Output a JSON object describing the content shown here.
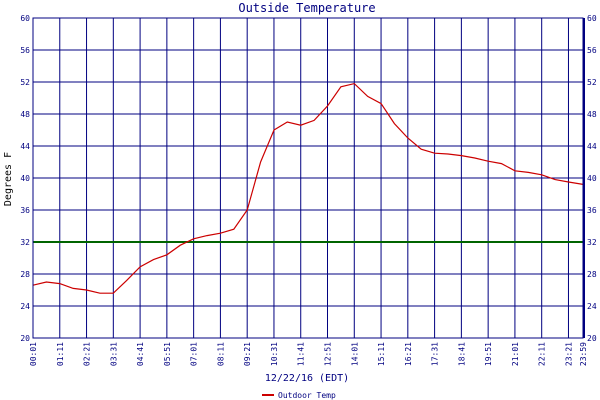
{
  "chart_data": {
    "type": "line",
    "title": "Outside Temperature",
    "xlabel": "12/22/16 (EDT)",
    "ylabel": "Degrees F",
    "ylim": [
      20,
      60
    ],
    "yticks": [
      20,
      24,
      28,
      32,
      36,
      40,
      44,
      48,
      52,
      56,
      60
    ],
    "xticks": [
      "00:01",
      "01:11",
      "02:21",
      "03:31",
      "04:41",
      "05:51",
      "07:01",
      "08:11",
      "09:21",
      "10:31",
      "11:41",
      "12:51",
      "14:01",
      "15:11",
      "16:21",
      "17:31",
      "18:41",
      "19:51",
      "21:01",
      "22:11",
      "23:21",
      "23:59"
    ],
    "grid": true,
    "legend_position": "bottom-left",
    "reference_line": {
      "value": 32,
      "color": "#006400"
    },
    "series": [
      {
        "name": "Outdoor Temp",
        "color": "#cc0000",
        "x": [
          "00:01",
          "00:36",
          "01:11",
          "01:46",
          "02:21",
          "02:56",
          "03:31",
          "04:06",
          "04:41",
          "05:16",
          "05:51",
          "06:26",
          "07:01",
          "07:36",
          "08:11",
          "08:46",
          "09:21",
          "09:56",
          "10:31",
          "11:06",
          "11:41",
          "12:16",
          "12:51",
          "13:26",
          "14:01",
          "14:36",
          "15:11",
          "15:46",
          "16:21",
          "16:56",
          "17:31",
          "18:06",
          "18:41",
          "19:16",
          "19:51",
          "20:26",
          "21:01",
          "21:36",
          "22:11",
          "22:46",
          "23:21",
          "23:59"
        ],
        "values": [
          26.6,
          27.0,
          26.8,
          26.2,
          26.0,
          25.6,
          25.6,
          27.2,
          28.9,
          29.8,
          30.4,
          31.6,
          32.4,
          32.8,
          33.1,
          33.6,
          36.0,
          42.0,
          46.0,
          47.0,
          46.6,
          47.2,
          49.0,
          51.4,
          51.8,
          50.2,
          49.3,
          46.8,
          45.0,
          43.6,
          43.1,
          43.0,
          42.8,
          42.5,
          42.1,
          41.8,
          40.9,
          40.7,
          40.4,
          39.8,
          39.5,
          39.2
        ]
      }
    ]
  }
}
